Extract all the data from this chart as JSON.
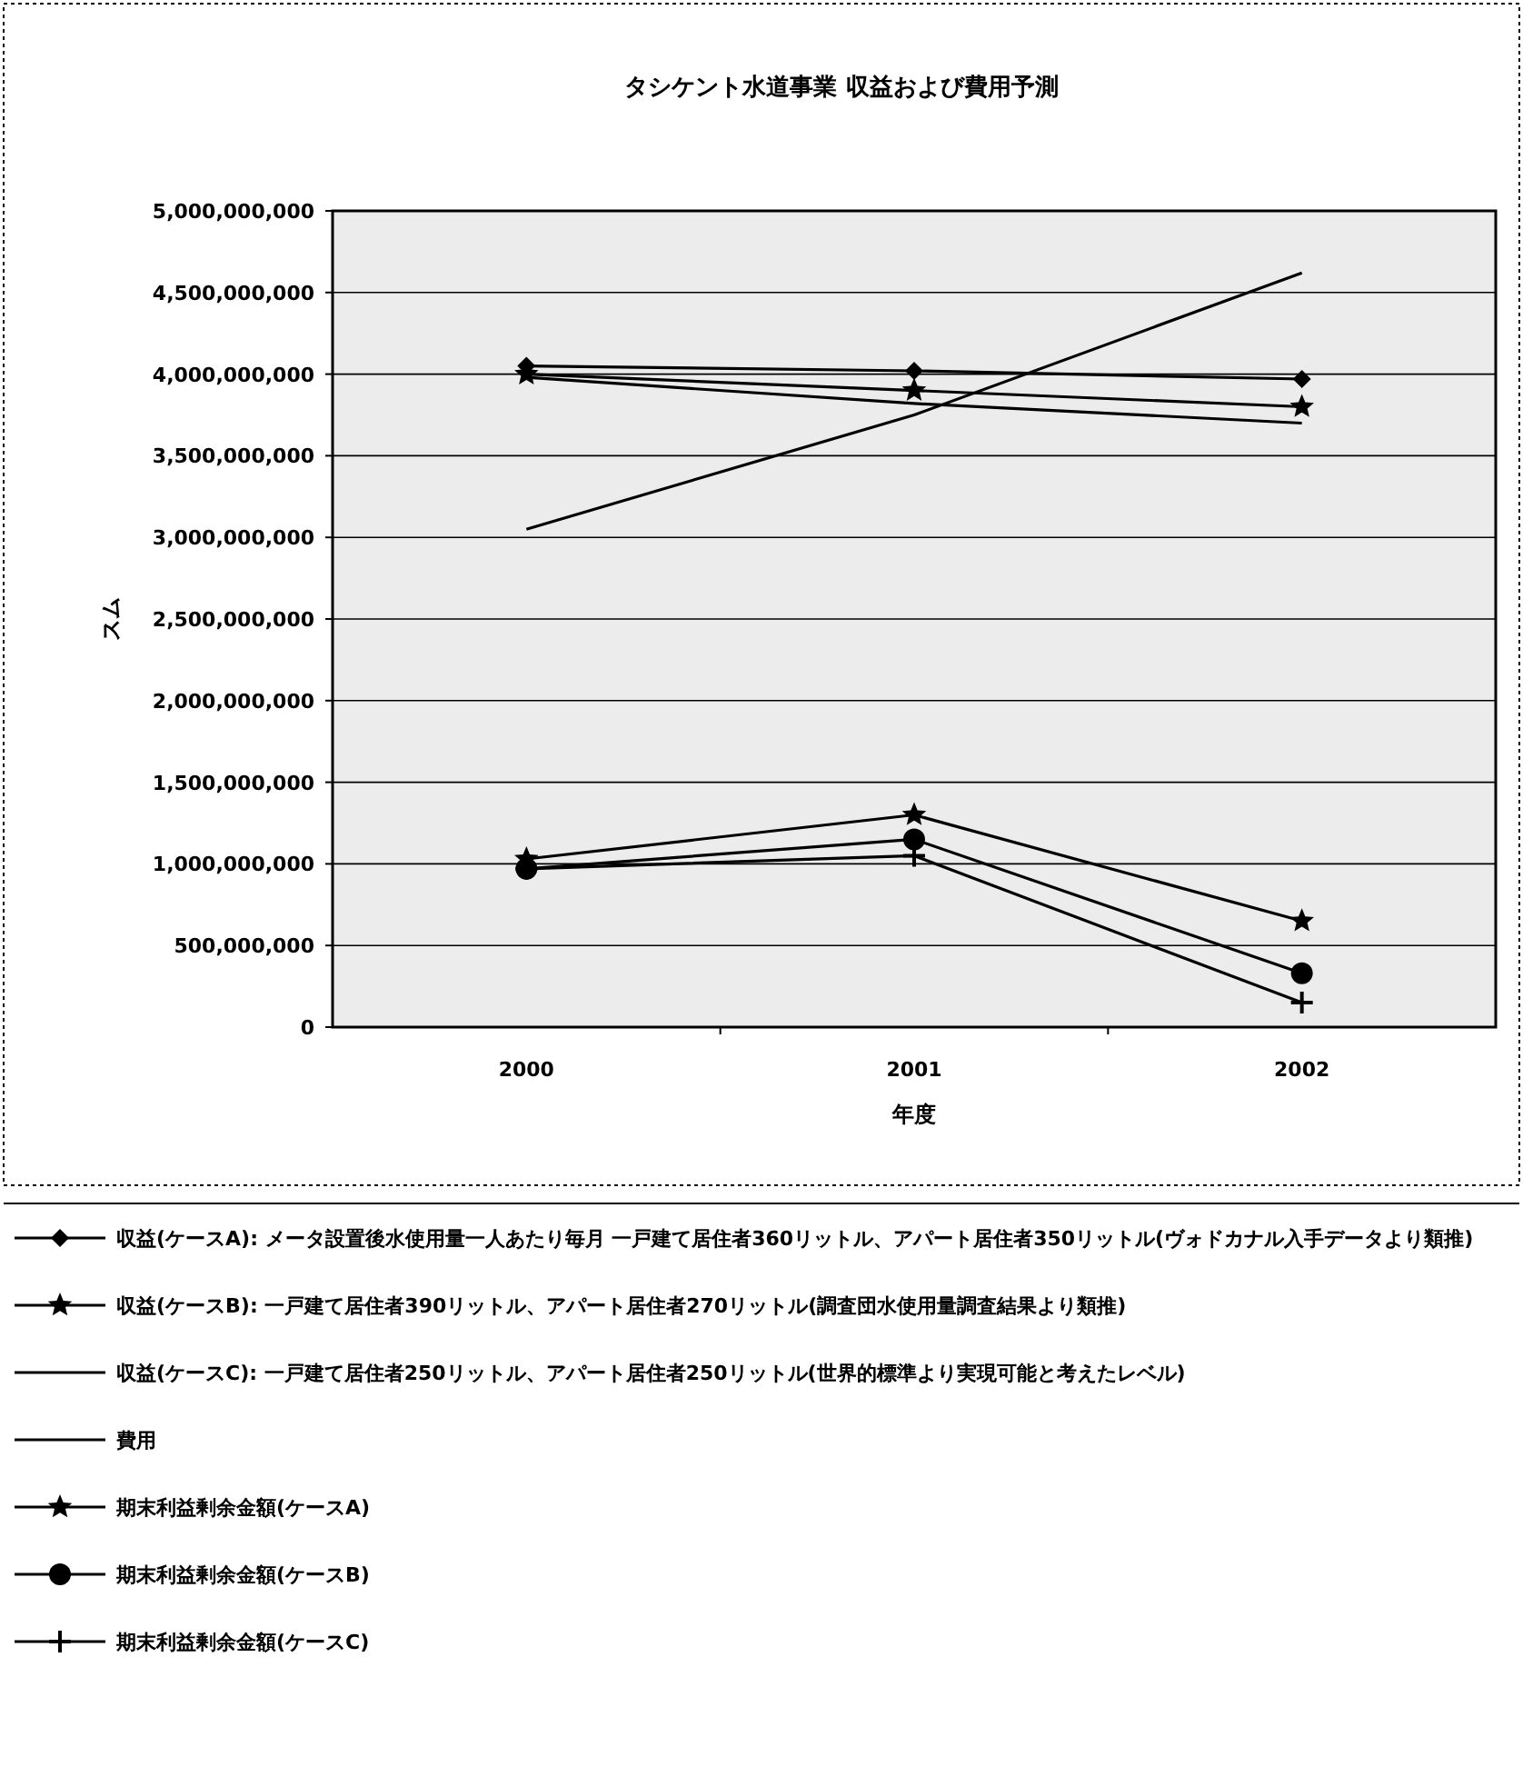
{
  "chart_data": {
    "type": "line",
    "title": "タシケント水道事業 収益および費用予測",
    "xlabel": "年度",
    "ylabel": "スム",
    "categories": [
      "2000",
      "2001",
      "2002"
    ],
    "ylim": [
      0,
      5000000000
    ],
    "yticks": [
      {
        "value": 0,
        "label": "0"
      },
      {
        "value": 500000000,
        "label": "500,000,000"
      },
      {
        "value": 1000000000,
        "label": "1,000,000,000"
      },
      {
        "value": 1500000000,
        "label": "1,500,000,000"
      },
      {
        "value": 2000000000,
        "label": "2,000,000,000"
      },
      {
        "value": 2500000000,
        "label": "2,500,000,000"
      },
      {
        "value": 3000000000,
        "label": "3,000,000,000"
      },
      {
        "value": 3500000000,
        "label": "3,500,000,000"
      },
      {
        "value": 4000000000,
        "label": "4,000,000,000"
      },
      {
        "value": 4500000000,
        "label": "4,500,000,000"
      },
      {
        "value": 5000000000,
        "label": "5,000,000,000"
      }
    ],
    "grid": "y",
    "legend": "bottom",
    "series": [
      {
        "name": "収益(ケースA): メータ設置後水使用量一人あたり毎月 一戸建て居住者360リットル、アパート居住者350リットル(ヴォドカナル入手データより類推)",
        "color": "#000000",
        "marker": "diamond",
        "values": [
          4050000000,
          4020000000,
          3970000000
        ]
      },
      {
        "name": "収益(ケースB): 一戸建て居住者390リットル、アパート居住者270リットル(調査団水使用量調査結果より類推)",
        "color": "#000000",
        "marker": "star",
        "values": [
          4000000000,
          3900000000,
          3800000000
        ]
      },
      {
        "name": "収益(ケースC): 一戸建て居住者250リットル、アパート居住者250リットル(世界的標準より実現可能と考えたレベル)",
        "color": "#000000",
        "marker": "none",
        "values": [
          3980000000,
          3820000000,
          3700000000
        ]
      },
      {
        "name": "費用",
        "color": "#000000",
        "marker": "none",
        "values": [
          3050000000,
          3750000000,
          4620000000
        ]
      },
      {
        "name": "期末利益剰余金額(ケースA)",
        "color": "#000000",
        "marker": "star",
        "values": [
          1030000000,
          1300000000,
          650000000
        ]
      },
      {
        "name": "期末利益剰余金額(ケースB)",
        "color": "#000000",
        "marker": "circle",
        "values": [
          970000000,
          1150000000,
          330000000
        ]
      },
      {
        "name": "期末利益剰余金額(ケースC)",
        "color": "#000000",
        "marker": "cross",
        "values": [
          970000000,
          1050000000,
          150000000
        ]
      }
    ]
  }
}
